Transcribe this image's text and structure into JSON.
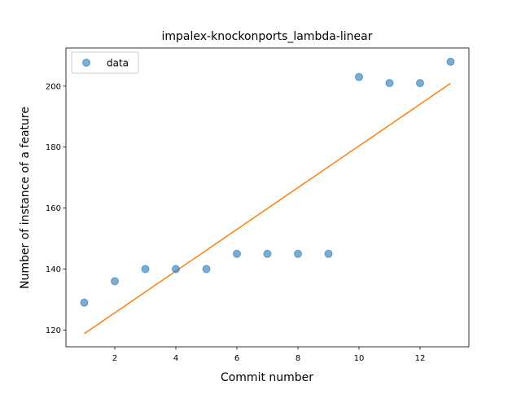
{
  "chart_data": {
    "type": "scatter",
    "title": "impalex-knockonports_lambda-linear",
    "xlabel": "Commit number",
    "ylabel": "Number of instance of a feature",
    "xlim": [
      0.4,
      13.6
    ],
    "ylim": [
      114.5,
      212.5
    ],
    "xticks": [
      2,
      4,
      6,
      8,
      10,
      12
    ],
    "yticks": [
      120,
      140,
      160,
      180,
      200
    ],
    "grid": false,
    "legend_position": "top-left",
    "series": [
      {
        "name": "data",
        "kind": "scatter",
        "color": "#1f77b4",
        "x": [
          1,
          2,
          3,
          4,
          5,
          6,
          7,
          8,
          9,
          10,
          11,
          12,
          13
        ],
        "y": [
          129,
          136,
          140,
          140,
          140,
          145,
          145,
          145,
          145,
          203,
          201,
          201,
          208
        ]
      },
      {
        "kind": "line",
        "color": "#ff7f0e",
        "x": [
          1,
          13
        ],
        "y": [
          118.8,
          200.9
        ]
      }
    ]
  }
}
